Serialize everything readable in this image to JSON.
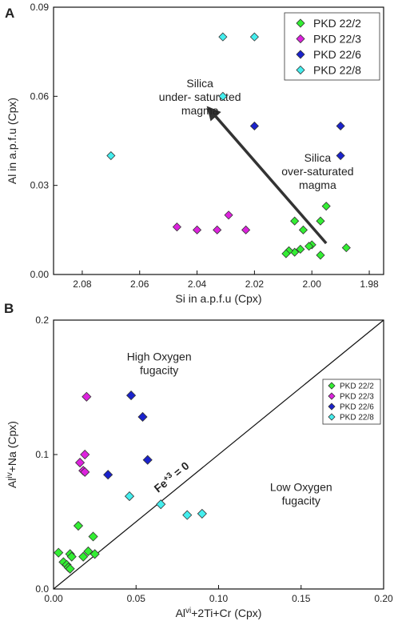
{
  "colors": {
    "PKD 22/2": "#33ee33",
    "PKD 22/3": "#dd22dd",
    "PKD 22/6": "#1a22cc",
    "PKD 22/8": "#44eeee"
  },
  "chart_data": [
    {
      "panel_label": "A",
      "type": "scatter",
      "xlabel": "Si in a.p.f.u (Cpx)",
      "ylabel": "Al in a.p.f.u (Cpx)",
      "x_reversed": true,
      "xlim": [
        2.09,
        1.975
      ],
      "ylim": [
        0,
        0.09
      ],
      "xticks": [
        {
          "v": 2.08,
          "label": "2.08"
        },
        {
          "v": 2.06,
          "label": "2.06"
        },
        {
          "v": 2.04,
          "label": "2.04"
        },
        {
          "v": 2.02,
          "label": "2.02"
        },
        {
          "v": 2.0,
          "label": "2.00"
        },
        {
          "v": 1.98,
          "label": "1.98"
        }
      ],
      "yticks": [
        {
          "v": 0.0,
          "label": "0.00"
        },
        {
          "v": 0.03,
          "label": "0.03"
        },
        {
          "v": 0.06,
          "label": "0.06"
        },
        {
          "v": 0.09,
          "label": "0.09"
        }
      ],
      "legend_position": "top-right",
      "series": [
        {
          "name": "PKD 22/2",
          "points": [
            [
              1.995,
              0.023
            ],
            [
              2.006,
              0.018
            ],
            [
              2.003,
              0.015
            ],
            [
              1.997,
              0.018
            ],
            [
              2.0,
              0.01
            ],
            [
              2.001,
              0.0095
            ],
            [
              2.004,
              0.0085
            ],
            [
              2.006,
              0.0075
            ],
            [
              2.008,
              0.008
            ],
            [
              2.009,
              0.007
            ],
            [
              1.997,
              0.0065
            ],
            [
              1.988,
              0.009
            ]
          ]
        },
        {
          "name": "PKD 22/3",
          "points": [
            [
              2.047,
              0.016
            ],
            [
              2.04,
              0.015
            ],
            [
              2.033,
              0.015
            ],
            [
              2.029,
              0.02
            ],
            [
              2.023,
              0.015
            ]
          ]
        },
        {
          "name": "PKD 22/6",
          "points": [
            [
              2.02,
              0.05
            ],
            [
              1.99,
              0.05
            ],
            [
              1.99,
              0.04
            ]
          ]
        },
        {
          "name": "PKD 22/8",
          "points": [
            [
              2.031,
              0.08
            ],
            [
              2.02,
              0.08
            ],
            [
              2.031,
              0.06
            ],
            [
              2.07,
              0.04
            ]
          ]
        }
      ],
      "annotations": [
        {
          "lines": [
            "Silica",
            "under- saturated",
            "magma"
          ],
          "anchor": [
            2.039,
            0.063
          ]
        },
        {
          "lines": [
            "Silica",
            "over-saturated",
            "magma"
          ],
          "anchor": [
            1.998,
            0.038
          ]
        }
      ],
      "arrow": {
        "from": [
          1.995,
          0.0105
        ],
        "to": [
          2.036,
          0.056
        ]
      }
    },
    {
      "panel_label": "B",
      "type": "scatter",
      "xlabel": "Al^vi+2Ti+Cr (Cpx)",
      "ylabel": "Al^iv+Na (Cpx)",
      "xlim": [
        0,
        0.2
      ],
      "ylim": [
        0,
        0.2
      ],
      "xticks": [
        {
          "v": 0.0,
          "label": "0.00"
        },
        {
          "v": 0.05,
          "label": "0.05"
        },
        {
          "v": 0.1,
          "label": "0.10"
        },
        {
          "v": 0.15,
          "label": "0.15"
        },
        {
          "v": 0.2,
          "label": "0.20"
        }
      ],
      "yticks": [
        {
          "v": 0.0,
          "label": "0.0"
        },
        {
          "v": 0.1,
          "label": "0.1"
        },
        {
          "v": 0.2,
          "label": "0.2"
        }
      ],
      "legend_position": "right",
      "series": [
        {
          "name": "PKD 22/2",
          "points": [
            [
              0.015,
              0.047
            ],
            [
              0.024,
              0.039
            ],
            [
              0.003,
              0.027
            ],
            [
              0.021,
              0.028
            ],
            [
              0.025,
              0.026
            ],
            [
              0.01,
              0.026
            ],
            [
              0.011,
              0.024
            ],
            [
              0.018,
              0.024
            ],
            [
              0.006,
              0.02
            ],
            [
              0.008,
              0.018
            ],
            [
              0.009,
              0.016
            ],
            [
              0.01,
              0.015
            ]
          ]
        },
        {
          "name": "PKD 22/3",
          "points": [
            [
              0.02,
              0.143
            ],
            [
              0.019,
              0.1
            ],
            [
              0.016,
              0.094
            ],
            [
              0.018,
              0.088
            ],
            [
              0.019,
              0.087
            ]
          ]
        },
        {
          "name": "PKD 22/6",
          "points": [
            [
              0.047,
              0.144
            ],
            [
              0.054,
              0.128
            ],
            [
              0.057,
              0.096
            ],
            [
              0.033,
              0.085
            ]
          ]
        },
        {
          "name": "PKD 22/8",
          "points": [
            [
              0.046,
              0.069
            ],
            [
              0.065,
              0.063
            ],
            [
              0.081,
              0.055
            ],
            [
              0.09,
              0.056
            ]
          ]
        }
      ],
      "reference_line": {
        "label": "Fe+3 = 0",
        "from": [
          0,
          0
        ],
        "to": [
          0.2,
          0.2
        ]
      },
      "annotations": [
        {
          "lines": [
            "High Oxygen",
            "fugacity"
          ],
          "anchor": [
            0.064,
            0.17
          ]
        },
        {
          "lines": [
            "Low Oxygen",
            "fugacity"
          ],
          "anchor": [
            0.15,
            0.073
          ]
        }
      ]
    }
  ]
}
